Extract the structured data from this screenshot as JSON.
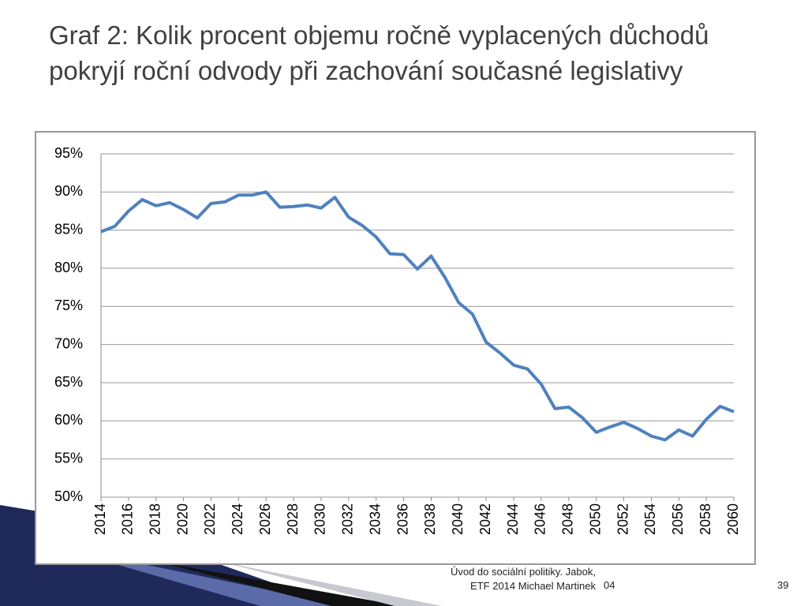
{
  "slide": {
    "title": "Graf 2: Kolik procent objemu ročně vyplacených důchodů pokryjí roční odvody při zachování současné legislativy",
    "footer": [
      "Úvod do sociální politiky. Jabok,",
      "ETF 2014 Michael Martinek"
    ],
    "date": "04",
    "page": "39"
  },
  "chart_data": {
    "type": "line",
    "x": [
      2014,
      2015,
      2016,
      2017,
      2018,
      2019,
      2020,
      2021,
      2022,
      2023,
      2024,
      2025,
      2026,
      2027,
      2028,
      2029,
      2030,
      2031,
      2032,
      2033,
      2034,
      2035,
      2036,
      2037,
      2038,
      2039,
      2040,
      2041,
      2042,
      2043,
      2044,
      2045,
      2046,
      2047,
      2048,
      2049,
      2050,
      2051,
      2052,
      2053,
      2054,
      2055,
      2056,
      2057,
      2058,
      2059,
      2060
    ],
    "series": [
      {
        "color": "#4f81bd",
        "values": [
          84.8,
          85.5,
          87.5,
          89.0,
          88.2,
          88.6,
          87.7,
          86.6,
          88.5,
          88.7,
          89.6,
          89.6,
          90.0,
          88.0,
          88.1,
          88.3,
          87.9,
          89.3,
          86.7,
          85.6,
          84.1,
          81.9,
          81.8,
          79.9,
          81.6,
          78.8,
          75.5,
          74.0,
          70.3,
          68.9,
          67.3,
          66.8,
          64.8,
          61.6,
          61.8,
          60.4,
          58.5,
          59.2,
          59.8,
          59.0,
          58.0,
          57.5,
          58.8,
          58.0,
          60.2,
          61.9,
          61.2
        ]
      }
    ],
    "xlim": [
      2014,
      2060
    ],
    "xticks": [
      2014,
      2016,
      2018,
      2020,
      2022,
      2024,
      2026,
      2028,
      2030,
      2032,
      2034,
      2036,
      2038,
      2040,
      2042,
      2044,
      2046,
      2048,
      2050,
      2052,
      2054,
      2056,
      2058,
      2060
    ],
    "ylim": [
      50,
      95
    ],
    "yticks": [
      {
        "value": 50,
        "label": "50%"
      },
      {
        "value": 55,
        "label": "55%"
      },
      {
        "value": 60,
        "label": "60%"
      },
      {
        "value": 65,
        "label": "65%"
      },
      {
        "value": 70,
        "label": "70%"
      },
      {
        "value": 75,
        "label": "75%"
      },
      {
        "value": 80,
        "label": "80%"
      },
      {
        "value": 85,
        "label": "85%"
      },
      {
        "value": 90,
        "label": "90%"
      },
      {
        "value": 95,
        "label": "95%"
      }
    ],
    "grid": true
  }
}
